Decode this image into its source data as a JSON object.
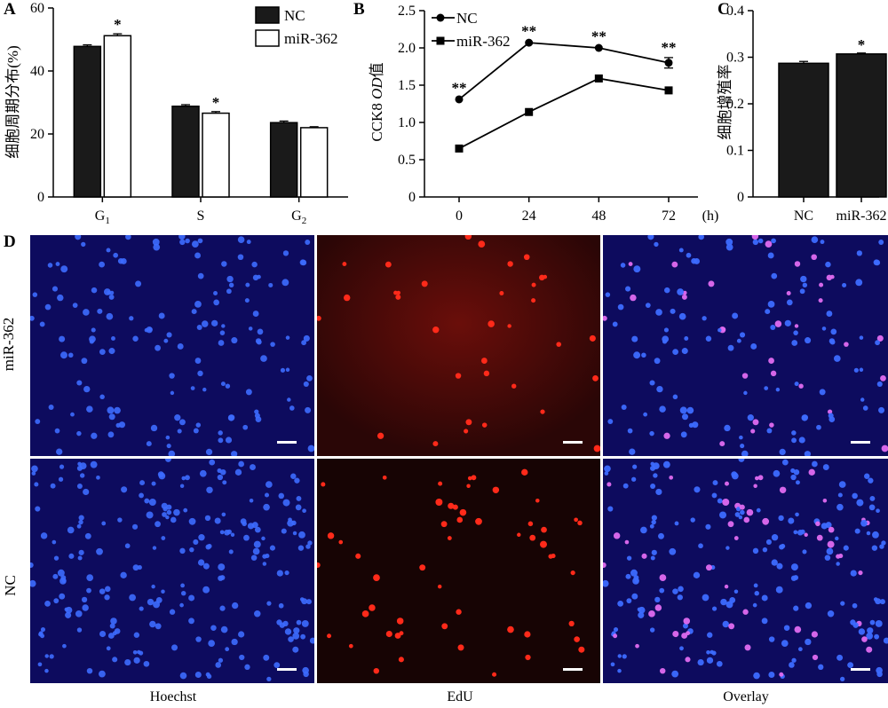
{
  "panels": {
    "a": "A",
    "b": "B",
    "c": "C",
    "d": "D"
  },
  "chart_data": [
    {
      "type": "bar",
      "ylabel": "细胞周期分布(%)",
      "categories": [
        "G",
        "S",
        "G"
      ],
      "category_subscripts": [
        "1",
        "",
        "2"
      ],
      "ylim": [
        0,
        60
      ],
      "yticks": [
        0,
        20,
        40,
        60
      ],
      "series": [
        {
          "name": "NC",
          "values": [
            47.8,
            28.8,
            23.6
          ],
          "errors": [
            0.5,
            0.5,
            0.5
          ],
          "color": "#1a1a1a"
        },
        {
          "name": "miR-362",
          "values": [
            51.2,
            26.6,
            22.0
          ],
          "errors": [
            0.6,
            0.5,
            0.3
          ],
          "color": "#ffffff"
        }
      ],
      "significance": [
        "*",
        "*",
        ""
      ],
      "legend_position": "top-right"
    },
    {
      "type": "line",
      "ylabel_prefix": "CCK8 ",
      "ylabel_italic": "OD",
      "ylabel_suffix": "值",
      "x": [
        0,
        24,
        48,
        72
      ],
      "x_unit": "(h)",
      "ylim": [
        0,
        2.5
      ],
      "yticks": [
        "0",
        "0.5",
        "1.0",
        "1.5",
        "2.0",
        "2.5"
      ],
      "series": [
        {
          "name": "NC",
          "values": [
            1.31,
            2.07,
            2.0,
            1.8
          ],
          "errors": [
            0.02,
            0.02,
            0.02,
            0.07
          ],
          "marker": "circle"
        },
        {
          "name": "miR-362",
          "values": [
            0.65,
            1.14,
            1.59,
            1.43
          ],
          "errors": [
            0.02,
            0.02,
            0.02,
            0.02
          ],
          "marker": "square"
        }
      ],
      "significance": [
        "**",
        "**",
        "**",
        "**"
      ],
      "legend_position": "top-left"
    },
    {
      "type": "bar",
      "ylabel": "细胞增殖率",
      "categories": [
        "NC",
        "miR-362"
      ],
      "values": [
        0.287,
        0.307
      ],
      "errors": [
        0.004,
        0.002
      ],
      "ylim": [
        0,
        0.4
      ],
      "yticks": [
        "0",
        "0.1",
        "0.2",
        "0.3",
        "0.4"
      ],
      "significance": [
        "",
        "*"
      ],
      "color": "#1a1a1a"
    }
  ],
  "microscopy": {
    "rows": [
      "miR-362",
      "NC"
    ],
    "columns": [
      "Hoechst",
      "EdU",
      "Overlay"
    ]
  }
}
